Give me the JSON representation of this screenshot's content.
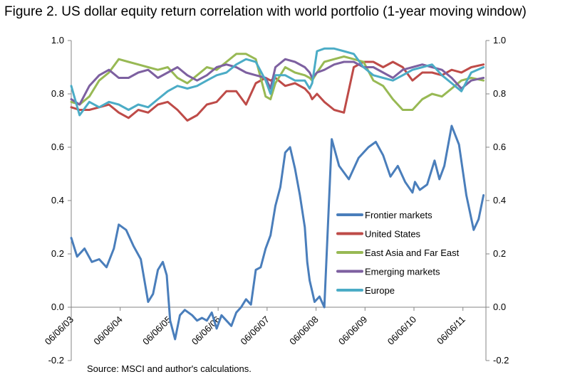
{
  "chart_data": {
    "type": "line",
    "title": "Figure 2. US dollar equity return correlation with world portfolio (1-year moving window)",
    "source": "Source: MSCI and author's calculations.",
    "xlabel": "",
    "ylabel": "",
    "x_ticks": [
      "06/06/03",
      "06/06/04",
      "06/06/05",
      "06/06/06",
      "06/06/07",
      "06/06/08",
      "06/06/09",
      "06/06/10",
      "06/06/11"
    ],
    "xlim": [
      2003.43,
      2011.9
    ],
    "ylim": [
      -0.2,
      1.0
    ],
    "y_ticks_left": [
      "1.0",
      "0.8",
      "0.6",
      "0.4",
      "0.2",
      "0.0",
      "-0.2"
    ],
    "y_ticks_right": [
      "1.0",
      "0.8",
      "0.6",
      "0.4",
      "0.2",
      "0.0",
      "-0.2"
    ],
    "y_tick_values": [
      1.0,
      0.8,
      0.6,
      0.4,
      0.2,
      0.0,
      -0.2
    ],
    "legend_position": "center-right",
    "series": [
      {
        "name": "Frontier markets",
        "color": "#4A7EBB",
        "x": [
          2003.43,
          2003.55,
          2003.7,
          2003.85,
          2004.0,
          2004.15,
          2004.3,
          2004.4,
          2004.55,
          2004.7,
          2004.85,
          2005.0,
          2005.1,
          2005.2,
          2005.3,
          2005.38,
          2005.45,
          2005.55,
          2005.65,
          2005.75,
          2005.9,
          2006.0,
          2006.1,
          2006.2,
          2006.3,
          2006.4,
          2006.5,
          2006.6,
          2006.7,
          2006.8,
          2006.9,
          2007.0,
          2007.1,
          2007.2,
          2007.3,
          2007.4,
          2007.5,
          2007.6,
          2007.7,
          2007.8,
          2007.9,
          2008.0,
          2008.1,
          2008.2,
          2008.25,
          2008.3,
          2008.35,
          2008.4,
          2008.5,
          2008.6,
          2008.75,
          2008.9,
          2009.1,
          2009.3,
          2009.5,
          2009.65,
          2009.8,
          2009.95,
          2010.1,
          2010.25,
          2010.4,
          2010.45,
          2010.55,
          2010.7,
          2010.85,
          2010.95,
          2011.05,
          2011.2,
          2011.35,
          2011.5,
          2011.65,
          2011.75,
          2011.85
        ],
        "values": [
          0.26,
          0.19,
          0.22,
          0.17,
          0.18,
          0.15,
          0.22,
          0.31,
          0.29,
          0.23,
          0.18,
          0.02,
          0.05,
          0.14,
          0.17,
          0.12,
          -0.05,
          -0.12,
          -0.03,
          -0.01,
          -0.03,
          -0.05,
          -0.04,
          -0.05,
          -0.02,
          -0.08,
          -0.03,
          -0.05,
          -0.07,
          -0.02,
          0.0,
          0.03,
          0.01,
          0.14,
          0.15,
          0.22,
          0.27,
          0.38,
          0.45,
          0.58,
          0.6,
          0.52,
          0.42,
          0.3,
          0.17,
          0.1,
          0.06,
          0.02,
          0.04,
          0.0,
          0.63,
          0.53,
          0.48,
          0.56,
          0.6,
          0.62,
          0.57,
          0.49,
          0.53,
          0.47,
          0.43,
          0.47,
          0.44,
          0.46,
          0.55,
          0.48,
          0.53,
          0.68,
          0.61,
          0.42,
          0.29,
          0.33,
          0.42
        ]
      },
      {
        "name": "United States",
        "color": "#BE4B48",
        "x": [
          2003.43,
          2003.6,
          2003.8,
          2004.0,
          2004.2,
          2004.4,
          2004.6,
          2004.8,
          2005.0,
          2005.2,
          2005.4,
          2005.6,
          2005.8,
          2006.0,
          2006.2,
          2006.4,
          2006.6,
          2006.8,
          2007.0,
          2007.2,
          2007.4,
          2007.5,
          2007.6,
          2007.8,
          2008.0,
          2008.2,
          2008.3,
          2008.35,
          2008.45,
          2008.6,
          2008.8,
          2009.0,
          2009.2,
          2009.4,
          2009.6,
          2009.8,
          2010.0,
          2010.2,
          2010.4,
          2010.6,
          2010.8,
          2011.0,
          2011.2,
          2011.4,
          2011.6,
          2011.85
        ],
        "values": [
          0.75,
          0.74,
          0.74,
          0.75,
          0.76,
          0.73,
          0.71,
          0.74,
          0.73,
          0.76,
          0.77,
          0.74,
          0.7,
          0.72,
          0.76,
          0.77,
          0.81,
          0.81,
          0.76,
          0.84,
          0.86,
          0.85,
          0.86,
          0.83,
          0.84,
          0.82,
          0.8,
          0.78,
          0.8,
          0.77,
          0.74,
          0.73,
          0.9,
          0.92,
          0.92,
          0.9,
          0.92,
          0.9,
          0.85,
          0.88,
          0.88,
          0.87,
          0.89,
          0.88,
          0.9,
          0.91
        ]
      },
      {
        "name": "East Asia and Far East",
        "color": "#98B954",
        "x": [
          2003.43,
          2003.6,
          2003.8,
          2004.0,
          2004.2,
          2004.4,
          2004.6,
          2004.8,
          2005.0,
          2005.2,
          2005.4,
          2005.6,
          2005.8,
          2006.0,
          2006.2,
          2006.4,
          2006.6,
          2006.8,
          2007.0,
          2007.2,
          2007.4,
          2007.5,
          2007.6,
          2007.8,
          2008.0,
          2008.2,
          2008.3,
          2008.35,
          2008.45,
          2008.6,
          2008.8,
          2009.0,
          2009.2,
          2009.4,
          2009.6,
          2009.8,
          2010.0,
          2010.2,
          2010.4,
          2010.6,
          2010.8,
          2011.0,
          2011.2,
          2011.4,
          2011.6,
          2011.85
        ],
        "values": [
          0.77,
          0.76,
          0.79,
          0.85,
          0.88,
          0.93,
          0.92,
          0.91,
          0.9,
          0.89,
          0.9,
          0.86,
          0.84,
          0.87,
          0.9,
          0.89,
          0.92,
          0.95,
          0.95,
          0.93,
          0.79,
          0.78,
          0.84,
          0.9,
          0.88,
          0.87,
          0.86,
          0.85,
          0.88,
          0.92,
          0.93,
          0.94,
          0.93,
          0.92,
          0.85,
          0.83,
          0.78,
          0.74,
          0.74,
          0.78,
          0.8,
          0.79,
          0.82,
          0.85,
          0.86,
          0.85
        ]
      },
      {
        "name": "Emerging markets",
        "color": "#7D60A0",
        "x": [
          2003.43,
          2003.6,
          2003.8,
          2004.0,
          2004.2,
          2004.4,
          2004.6,
          2004.8,
          2005.0,
          2005.2,
          2005.4,
          2005.6,
          2005.8,
          2006.0,
          2006.2,
          2006.4,
          2006.6,
          2006.8,
          2007.0,
          2007.2,
          2007.4,
          2007.5,
          2007.6,
          2007.8,
          2008.0,
          2008.2,
          2008.3,
          2008.35,
          2008.45,
          2008.6,
          2008.8,
          2009.0,
          2009.2,
          2009.4,
          2009.6,
          2009.8,
          2010.0,
          2010.2,
          2010.4,
          2010.6,
          2010.8,
          2011.0,
          2011.2,
          2011.4,
          2011.6,
          2011.85
        ],
        "values": [
          0.78,
          0.76,
          0.83,
          0.87,
          0.89,
          0.86,
          0.86,
          0.88,
          0.89,
          0.86,
          0.88,
          0.9,
          0.87,
          0.85,
          0.87,
          0.9,
          0.91,
          0.9,
          0.88,
          0.87,
          0.86,
          0.82,
          0.9,
          0.93,
          0.92,
          0.9,
          0.88,
          0.86,
          0.88,
          0.89,
          0.91,
          0.92,
          0.92,
          0.9,
          0.9,
          0.88,
          0.86,
          0.89,
          0.9,
          0.91,
          0.9,
          0.89,
          0.86,
          0.82,
          0.85,
          0.86
        ]
      },
      {
        "name": "Europe",
        "color": "#4BACC6",
        "x": [
          2003.43,
          2003.6,
          2003.8,
          2004.0,
          2004.2,
          2004.4,
          2004.6,
          2004.8,
          2005.0,
          2005.2,
          2005.4,
          2005.6,
          2005.8,
          2006.0,
          2006.2,
          2006.4,
          2006.6,
          2006.8,
          2007.0,
          2007.2,
          2007.4,
          2007.5,
          2007.6,
          2007.8,
          2008.0,
          2008.2,
          2008.3,
          2008.35,
          2008.45,
          2008.6,
          2008.8,
          2009.0,
          2009.2,
          2009.4,
          2009.6,
          2009.8,
          2010.0,
          2010.2,
          2010.4,
          2010.6,
          2010.8,
          2011.0,
          2011.2,
          2011.4,
          2011.6,
          2011.85
        ],
        "values": [
          0.83,
          0.72,
          0.77,
          0.75,
          0.77,
          0.76,
          0.74,
          0.76,
          0.75,
          0.78,
          0.81,
          0.83,
          0.82,
          0.83,
          0.85,
          0.87,
          0.88,
          0.91,
          0.93,
          0.92,
          0.85,
          0.8,
          0.87,
          0.87,
          0.85,
          0.85,
          0.82,
          0.84,
          0.96,
          0.97,
          0.97,
          0.96,
          0.95,
          0.9,
          0.87,
          0.86,
          0.85,
          0.87,
          0.89,
          0.9,
          0.91,
          0.87,
          0.84,
          0.81,
          0.88,
          0.9
        ]
      }
    ]
  }
}
